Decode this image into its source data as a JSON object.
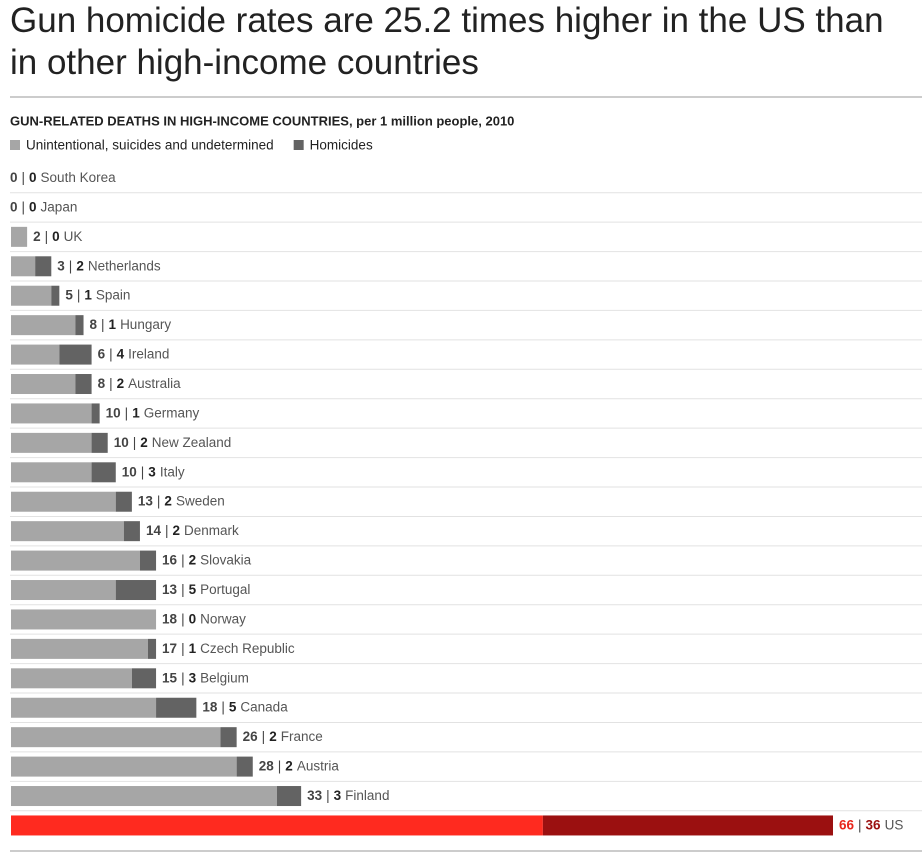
{
  "chart_data": {
    "type": "stacked-bar-horizontal",
    "title_lines": [
      "Gun homicide rates are 25.2 times higher in the US than",
      "in other high-income countries"
    ],
    "subtitle": "GUN-RELATED DEATHS IN HIGH-INCOME COUNTRIES, per 1 million people, 2010",
    "label_separator": "|",
    "categories": [
      "South Korea",
      "Japan",
      "UK",
      "Netherlands",
      "Spain",
      "Hungary",
      "Ireland",
      "Australia",
      "Germany",
      "New Zealand",
      "Italy",
      "Sweden",
      "Denmark",
      "Slovakia",
      "Portugal",
      "Norway",
      "Czech Republic",
      "Belgium",
      "Canada",
      "France",
      "Austria",
      "Finland",
      "US"
    ],
    "series": [
      {
        "name": "Unintentional, suicides and undetermined",
        "color": "#a6a6a6",
        "highlight_color": "#ff2a1f",
        "values": [
          0,
          0,
          2,
          3,
          5,
          8,
          6,
          8,
          10,
          10,
          10,
          13,
          14,
          16,
          13,
          18,
          17,
          15,
          18,
          26,
          28,
          33,
          66
        ]
      },
      {
        "name": "Homicides",
        "color": "#636363",
        "highlight_color": "#9b1010",
        "values": [
          0,
          0,
          0,
          2,
          1,
          1,
          4,
          2,
          1,
          2,
          3,
          2,
          2,
          2,
          5,
          0,
          1,
          3,
          5,
          2,
          2,
          3,
          36
        ]
      }
    ],
    "highlight_category": "US",
    "xlim": [
      0,
      102
    ]
  }
}
